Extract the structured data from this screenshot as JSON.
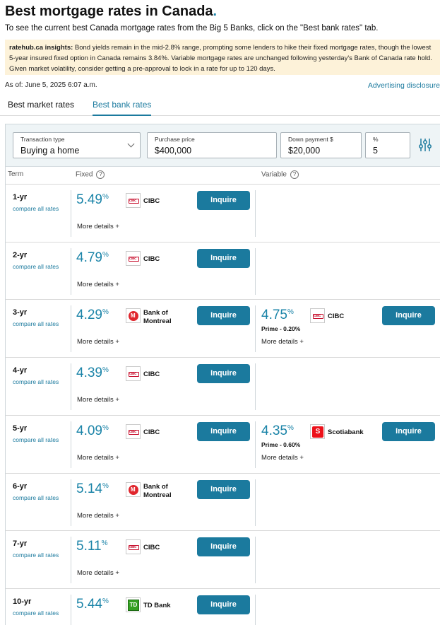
{
  "header": {
    "title": "Best mortgage rates in Canada",
    "title_dot": ".",
    "subtitle": "To see the current best Canada mortgage rates from the Big 5 Banks, click on the \"Best bank rates\" tab."
  },
  "insights": {
    "label": "ratehub.ca insights:",
    "text": " Bond yields remain in the mid-2.8% range, prompting some lenders to hike their fixed mortgage rates, though the lowest 5-year insured fixed option in Canada remains 3.84%. Variable mortgage rates are unchanged following yesterday's Bank of Canada rate hold. Given market volatility, consider getting a pre-approval to lock in a rate for up to 120 days."
  },
  "as_of": "As of: June 5, 2025 6:07 a.m.",
  "advertising_link": "Advertising disclosure",
  "tabs": [
    {
      "label": "Best market rates",
      "active": false
    },
    {
      "label": "Best bank rates",
      "active": true
    }
  ],
  "filters": {
    "transaction": {
      "label": "Transaction type",
      "value": "Buying a home"
    },
    "price": {
      "label": "Purchase price",
      "value": "$400,000"
    },
    "down_payment": {
      "label": "Down payment $",
      "value": "$20,000"
    },
    "percent": {
      "label": "%",
      "value": "5"
    },
    "tune_icon": "sliders-icon"
  },
  "columns": {
    "term": "Term",
    "fixed": "Fixed",
    "variable": "Variable",
    "help": "?"
  },
  "common": {
    "compare": "compare all rates",
    "inquire": "Inquire",
    "more": "More details +",
    "pct": "%"
  },
  "rows": [
    {
      "term": "1-yr",
      "fixed": {
        "rate": "5.49",
        "bank": "CIBC",
        "bank2": ""
      }
    },
    {
      "term": "2-yr",
      "fixed": {
        "rate": "4.79",
        "bank": "CIBC",
        "bank2": ""
      }
    },
    {
      "term": "3-yr",
      "fixed": {
        "rate": "4.29",
        "bank": "Bank of",
        "bank2": "Montreal"
      },
      "variable": {
        "rate": "4.75",
        "bank": "CIBC",
        "prime": "Prime - 0.20%"
      }
    },
    {
      "term": "4-yr",
      "fixed": {
        "rate": "4.39",
        "bank": "CIBC",
        "bank2": ""
      }
    },
    {
      "term": "5-yr",
      "fixed": {
        "rate": "4.09",
        "bank": "CIBC",
        "bank2": ""
      },
      "variable": {
        "rate": "4.35",
        "bank": "Scotiabank",
        "prime": "Prime - 0.60%"
      }
    },
    {
      "term": "6-yr",
      "fixed": {
        "rate": "5.14",
        "bank": "Bank of",
        "bank2": "Montreal"
      }
    },
    {
      "term": "7-yr",
      "fixed": {
        "rate": "5.11",
        "bank": "CIBC",
        "bank2": ""
      }
    },
    {
      "term": "10-yr",
      "fixed": {
        "rate": "5.44",
        "bank": "TD Bank",
        "bank2": ""
      }
    }
  ],
  "logo_text": {
    "cibc": "CIBC",
    "scotia": "S",
    "td": "TD"
  }
}
